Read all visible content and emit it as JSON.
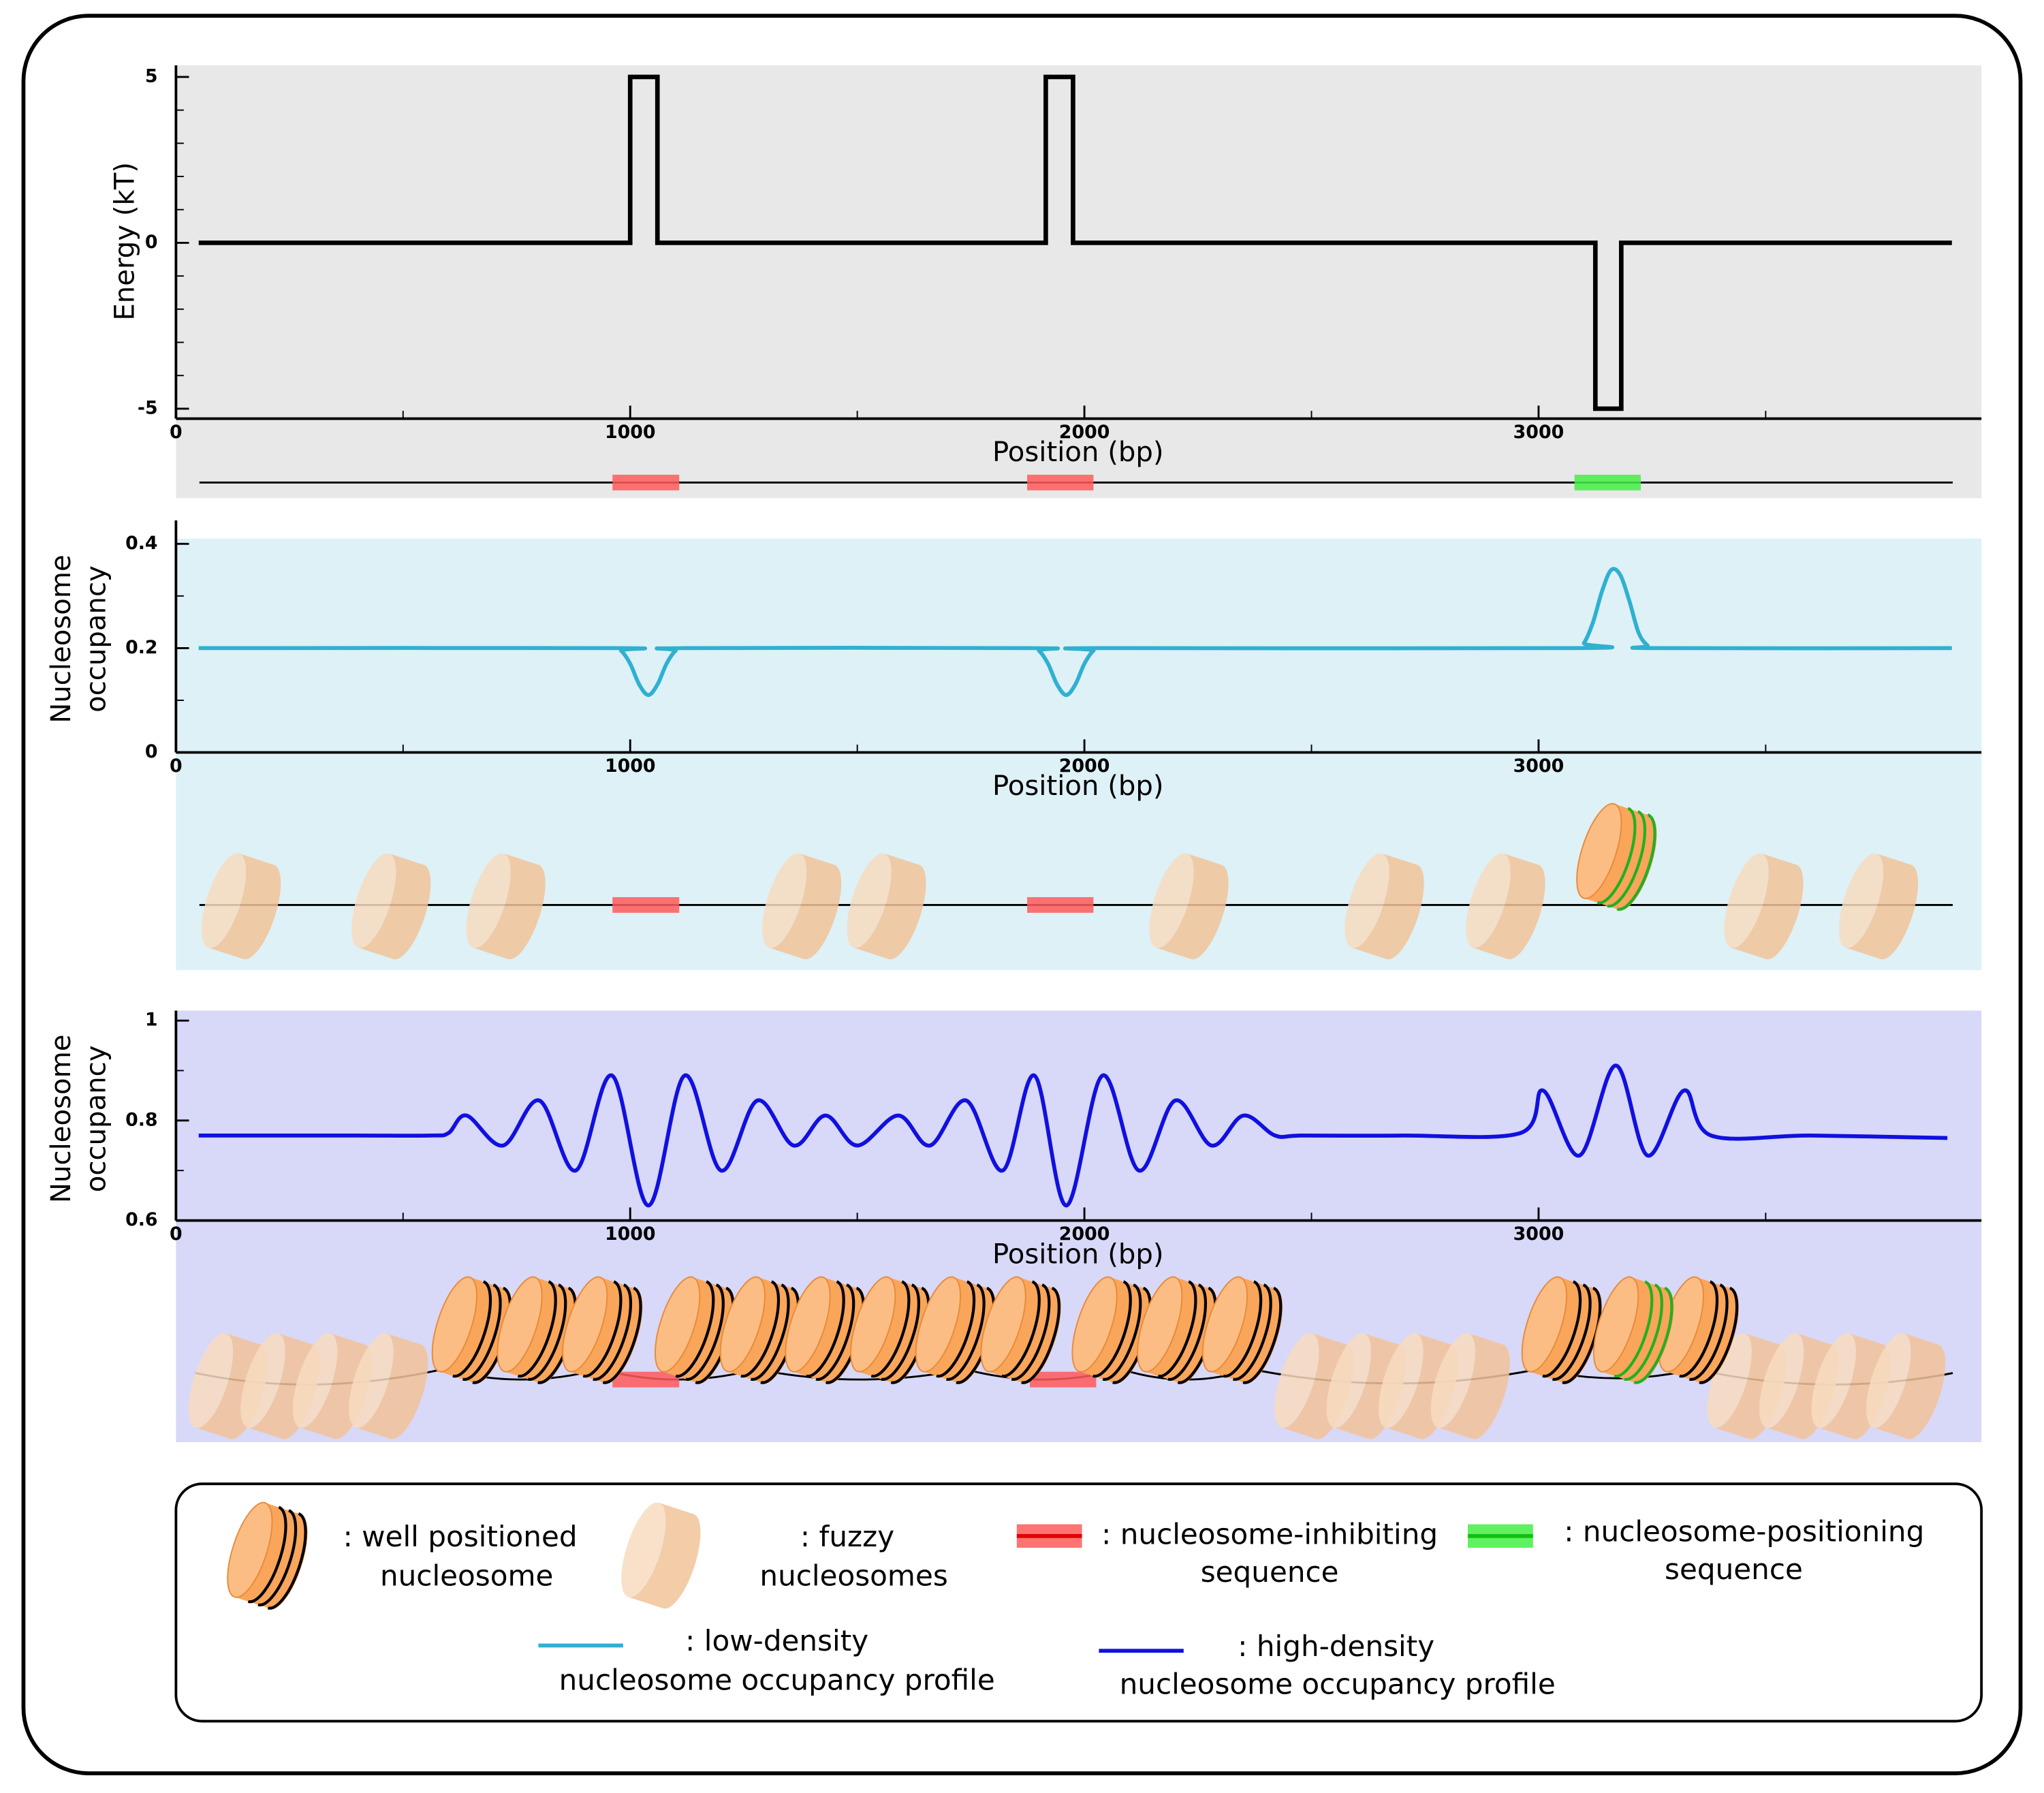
{
  "chart_data": [
    {
      "type": "line",
      "ylabel": [
        "Energy (kT)"
      ],
      "xlabel": "Position (bp)",
      "x": [
        50,
        1000,
        1000,
        1060,
        1060,
        1915,
        1915,
        1975,
        1975,
        3125,
        3125,
        3182,
        3182,
        3910
      ],
      "series": [
        {
          "color": "#000000",
          "values": [
            0,
            0,
            5,
            5,
            0,
            0,
            5,
            5,
            0,
            0,
            -5,
            -5,
            0,
            0
          ]
        }
      ],
      "interpolation": "linear",
      "xlim": [
        0,
        3975
      ],
      "xticks": [
        0,
        1000,
        2000,
        3000
      ],
      "xminorticks": [
        500,
        1500,
        2500,
        3500
      ],
      "ylim": [
        -5.3,
        5.35
      ],
      "yticks": [
        -5,
        0,
        5
      ],
      "yminorticks": [
        -4,
        -3,
        -2,
        -1,
        1,
        2,
        3,
        4
      ],
      "regions": [
        {
          "start": 961,
          "end": 1108,
          "color": "#ff5a5a"
        },
        {
          "start": 1874,
          "end": 2020,
          "color": "#ff5a5a"
        },
        {
          "start": 3079,
          "end": 3225,
          "color": "#44ee44"
        }
      ]
    },
    {
      "type": "line",
      "ylabel": [
        "Nucleosome",
        "occupancy"
      ],
      "xlabel": "Position (bp)",
      "x": [
        50,
        960,
        980,
        1000,
        1020,
        1040,
        1060,
        1080,
        1100,
        1120,
        1880,
        1900,
        1920,
        1940,
        1960,
        1980,
        2000,
        2020,
        2040,
        3080,
        3100,
        3120,
        3140,
        3160,
        3180,
        3200,
        3220,
        3240,
        3260,
        3910
      ],
      "series": [
        {
          "color": "#30b0d0",
          "values": [
            0.2,
            0.2,
            0.195,
            0.17,
            0.13,
            0.11,
            0.13,
            0.17,
            0.195,
            0.2,
            0.2,
            0.195,
            0.17,
            0.13,
            0.11,
            0.13,
            0.17,
            0.195,
            0.2,
            0.2,
            0.21,
            0.25,
            0.31,
            0.35,
            0.34,
            0.29,
            0.23,
            0.205,
            0.2,
            0.2
          ]
        }
      ],
      "interpolation": "smooth",
      "xlim": [
        0,
        3975
      ],
      "xticks": [
        0,
        1000,
        2000,
        3000
      ],
      "xminorticks": [
        500,
        1500,
        2500,
        3500
      ],
      "ylim": [
        0,
        0.445
      ],
      "yticks": [
        0,
        0.2,
        0.4
      ],
      "yminorticks": [
        0.1,
        0.3
      ],
      "regions": [
        {
          "start": 961,
          "end": 1108,
          "color": "#ff5a5a"
        },
        {
          "start": 1874,
          "end": 2020,
          "color": "#ff5a5a"
        }
      ]
    },
    {
      "type": "line",
      "ylabel": [
        "Nucleosome",
        "occupancy"
      ],
      "xlabel": "Position (bp)",
      "x": [
        50,
        200,
        400,
        560,
        600,
        640,
        720,
        800,
        880,
        960,
        1040,
        1120,
        1200,
        1280,
        1360,
        1430,
        1500,
        1590,
        1660,
        1740,
        1820,
        1890,
        1960,
        2040,
        2120,
        2200,
        2280,
        2350,
        2420,
        2480,
        2700,
        2960,
        3010,
        3090,
        3170,
        3240,
        3320,
        3380,
        3600,
        3900
      ],
      "series": [
        {
          "color": "#1010e0",
          "values": [
            0.77,
            0.77,
            0.77,
            0.77,
            0.775,
            0.81,
            0.75,
            0.84,
            0.7,
            0.89,
            0.63,
            0.89,
            0.7,
            0.84,
            0.75,
            0.81,
            0.75,
            0.81,
            0.75,
            0.84,
            0.7,
            0.89,
            0.63,
            0.89,
            0.7,
            0.84,
            0.75,
            0.81,
            0.77,
            0.77,
            0.77,
            0.775,
            0.86,
            0.73,
            0.91,
            0.73,
            0.86,
            0.77,
            0.77,
            0.765
          ]
        }
      ],
      "interpolation": "smooth",
      "xlim": [
        0,
        3975
      ],
      "xticks": [
        0,
        1000,
        2000,
        3000
      ],
      "xminorticks": [
        500,
        1500,
        2500,
        3500
      ],
      "ylim": [
        0.6,
        1.02
      ],
      "yticks": [
        0.6,
        0.8,
        1
      ],
      "yminorticks": [
        0.7,
        0.9
      ],
      "regions": [
        {
          "start": 961,
          "end": 1108,
          "color": "#ff5a5a"
        },
        {
          "start": 1880,
          "end": 2026,
          "color": "#ff5a5a"
        }
      ]
    }
  ],
  "legend": [
    [
      ": well positioned",
      "nucleosome"
    ],
    [
      ": fuzzy",
      "nucleosomes"
    ],
    [
      ": nucleosome-inhibiting",
      "sequence"
    ],
    [
      ": nucleosome-positioning",
      "sequence"
    ],
    [
      ": low-density",
      "nucleosome occupancy profile"
    ],
    [
      ": high-density",
      "nucleosome occupancy profile"
    ]
  ]
}
